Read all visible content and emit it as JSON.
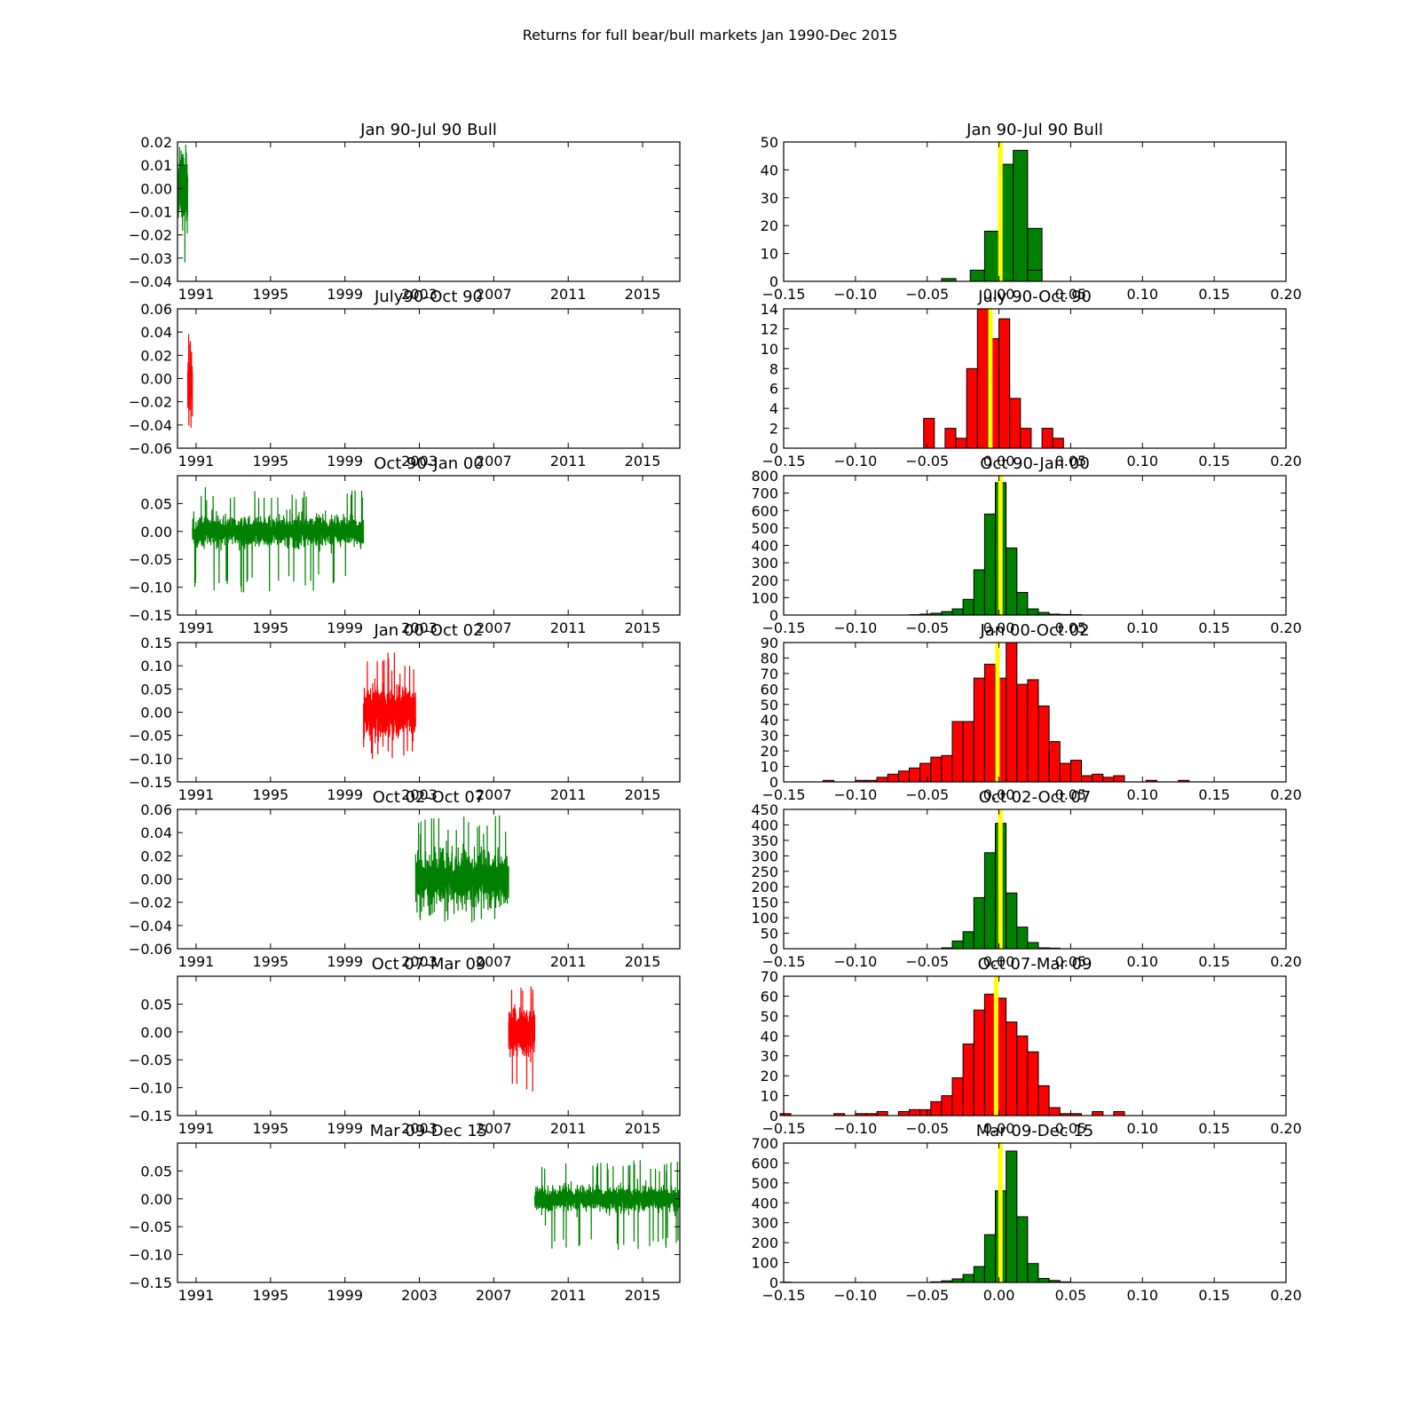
{
  "figure_title": "Returns for full bear/bull markets Jan 1990-Dec 2015",
  "colors": {
    "bull": "#008000",
    "bear": "#ff0000",
    "mean_line": "#ffff00"
  },
  "chart_data": [
    {
      "type": "line",
      "title": "Jan 90-Jul 90 Bull",
      "market": "bull",
      "x_ticks": [
        "1991",
        "1995",
        "1999",
        "2003",
        "2007",
        "2011",
        "2015"
      ],
      "x_range": [
        1990.0,
        2017.0
      ],
      "data_span": [
        1990.0,
        1990.55
      ],
      "ylim": [
        -0.04,
        0.02
      ],
      "y_ticks": [
        "0.02",
        "0.01",
        "0.00",
        "−0.01",
        "−0.02",
        "−0.03",
        "−0.04"
      ],
      "y_tick_values": [
        0.02,
        0.01,
        0.0,
        -0.01,
        -0.02,
        -0.03,
        -0.04
      ],
      "approx_min": -0.032,
      "approx_max": 0.02,
      "typical_amplitude": 0.008
    },
    {
      "type": "bar",
      "title": "Jan 90-Jul 90 Bull",
      "market": "bull",
      "bin_width": 0.01,
      "xlim": [
        -0.15,
        0.2
      ],
      "x_ticks": [
        "−0.15",
        "−0.10",
        "−0.05",
        "0.00",
        "0.05",
        "0.10",
        "0.15",
        "0.20"
      ],
      "ylim": [
        0,
        50
      ],
      "y_ticks": [
        "0",
        "10",
        "20",
        "30",
        "40",
        "50"
      ],
      "bin_starts": [
        -0.04,
        -0.03,
        -0.02,
        -0.01,
        0.0,
        0.01,
        0.02
      ],
      "counts": [
        1,
        0,
        4,
        18,
        42,
        47,
        19
      ],
      "extra_bins": {
        "bin_starts": [
          0.02
        ],
        "counts": [
          4
        ]
      },
      "mean": 0.001
    },
    {
      "type": "line",
      "title": "July90-Oct 90",
      "market": "bear",
      "x_ticks": [
        "1991",
        "1995",
        "1999",
        "2003",
        "2007",
        "2011",
        "2015"
      ],
      "x_range": [
        1990.0,
        2017.0
      ],
      "data_span": [
        1990.55,
        1990.8
      ],
      "ylim": [
        -0.06,
        0.06
      ],
      "y_ticks": [
        "0.06",
        "0.04",
        "0.02",
        "0.00",
        "−0.02",
        "−0.04",
        "−0.06"
      ],
      "y_tick_values": [
        0.06,
        0.04,
        0.02,
        0.0,
        -0.02,
        -0.04,
        -0.06
      ],
      "approx_min": -0.05,
      "approx_max": 0.042,
      "typical_amplitude": 0.015
    },
    {
      "type": "bar",
      "title": "July 90-Oct 90",
      "market": "bear",
      "bin_width": 0.0075,
      "xlim": [
        -0.15,
        0.2
      ],
      "x_ticks": [
        "−0.15",
        "−0.10",
        "−0.05",
        "0.00",
        "0.05",
        "0.10",
        "0.15",
        "0.20"
      ],
      "ylim": [
        0,
        14
      ],
      "y_ticks": [
        "0",
        "2",
        "4",
        "6",
        "8",
        "10",
        "12",
        "14"
      ],
      "bin_starts": [
        -0.0525,
        -0.045,
        -0.0375,
        -0.03,
        -0.0225,
        -0.015,
        -0.0075,
        0.0,
        0.0075,
        0.015,
        0.0225,
        0.03,
        0.0375
      ],
      "counts": [
        3,
        0,
        2,
        1,
        8,
        14,
        11,
        13,
        5,
        2,
        0,
        2,
        1
      ],
      "mean": -0.006
    },
    {
      "type": "line",
      "title": "Oct 90-Jan 00",
      "market": "bull",
      "x_ticks": [
        "1991",
        "1995",
        "1999",
        "2003",
        "2007",
        "2011",
        "2015"
      ],
      "x_range": [
        1990.0,
        2017.0
      ],
      "data_span": [
        1990.8,
        2000.0
      ],
      "ylim": [
        -0.15,
        0.1
      ],
      "y_ticks": [
        "0.05",
        "0.00",
        "−0.05",
        "−0.10",
        "−0.15"
      ],
      "y_tick_values": [
        0.05,
        0.0,
        -0.05,
        -0.1,
        -0.15
      ],
      "approx_min": -0.11,
      "approx_max": 0.08,
      "typical_amplitude": 0.012
    },
    {
      "type": "bar",
      "title": "Oct 90-Jan 00",
      "market": "bull",
      "bin_width": 0.0075,
      "xlim": [
        -0.15,
        0.2
      ],
      "x_ticks": [
        "−0.15",
        "−0.10",
        "−0.05",
        "0.00",
        "0.05",
        "0.10",
        "0.15",
        "0.20"
      ],
      "ylim": [
        0,
        800
      ],
      "y_ticks": [
        "0",
        "100",
        "200",
        "300",
        "400",
        "500",
        "600",
        "700",
        "800"
      ],
      "bin_starts": [
        -0.0625,
        -0.055,
        -0.0475,
        -0.04,
        -0.0325,
        -0.025,
        -0.0175,
        -0.01,
        -0.0025,
        0.005,
        0.0125,
        0.02,
        0.0275,
        0.035,
        0.0425,
        0.05
      ],
      "counts": [
        2,
        5,
        10,
        20,
        35,
        90,
        260,
        580,
        760,
        385,
        130,
        35,
        15,
        5,
        3,
        2
      ],
      "mean": 0.001
    },
    {
      "type": "line",
      "title": "Jan 00-Oct 02",
      "market": "bear",
      "x_ticks": [
        "1991",
        "1995",
        "1999",
        "2003",
        "2007",
        "2011",
        "2015"
      ],
      "x_range": [
        1990.0,
        2017.0
      ],
      "data_span": [
        2000.0,
        2002.8
      ],
      "ylim": [
        -0.15,
        0.15
      ],
      "y_ticks": [
        "0.15",
        "0.10",
        "0.05",
        "0.00",
        "−0.05",
        "−0.10",
        "−0.15"
      ],
      "y_tick_values": [
        0.15,
        0.1,
        0.05,
        0.0,
        -0.05,
        -0.1,
        -0.15
      ],
      "approx_min": -0.11,
      "approx_max": 0.13,
      "typical_amplitude": 0.025
    },
    {
      "type": "bar",
      "title": "Jan 00-Oct 02",
      "market": "bear",
      "bin_width": 0.0075,
      "xlim": [
        -0.15,
        0.2
      ],
      "x_ticks": [
        "−0.15",
        "−0.10",
        "−0.05",
        "0.00",
        "0.05",
        "0.10",
        "0.15",
        "0.20"
      ],
      "ylim": [
        0,
        90
      ],
      "y_ticks": [
        "0",
        "10",
        "20",
        "30",
        "40",
        "50",
        "60",
        "70",
        "80",
        "90"
      ],
      "bin_starts": [
        -0.1225,
        -0.115,
        -0.1075,
        -0.1,
        -0.0925,
        -0.085,
        -0.0775,
        -0.07,
        -0.0625,
        -0.055,
        -0.0475,
        -0.04,
        -0.0325,
        -0.025,
        -0.0175,
        -0.01,
        -0.0025,
        0.005,
        0.0125,
        0.02,
        0.0275,
        0.035,
        0.0425,
        0.05,
        0.0575,
        0.065,
        0.0725,
        0.08,
        0.0875,
        0.095,
        0.1025,
        0.11,
        0.1175,
        0.125,
        0.1325
      ],
      "counts": [
        1,
        0,
        0,
        1,
        1,
        3,
        5,
        7,
        9,
        12,
        16,
        17,
        39,
        39,
        67,
        76,
        67,
        90,
        63,
        66,
        49,
        26,
        12,
        14,
        4,
        5,
        3,
        4,
        0,
        0,
        1,
        0,
        0,
        1,
        0
      ],
      "mean": -0.001
    },
    {
      "type": "line",
      "title": "Oct 02-Oct 07",
      "market": "bull",
      "x_ticks": [
        "1991",
        "1995",
        "1999",
        "2003",
        "2007",
        "2011",
        "2015"
      ],
      "x_range": [
        1990.0,
        2017.0
      ],
      "data_span": [
        2002.8,
        2007.8
      ],
      "ylim": [
        -0.06,
        0.06
      ],
      "y_ticks": [
        "0.06",
        "0.04",
        "0.02",
        "0.00",
        "−0.02",
        "−0.04",
        "−0.06"
      ],
      "y_tick_values": [
        0.06,
        0.04,
        0.02,
        0.0,
        -0.02,
        -0.04,
        -0.06
      ],
      "approx_min": -0.04,
      "approx_max": 0.055,
      "typical_amplitude": 0.01
    },
    {
      "type": "bar",
      "title": "Oct 02-Oct 07",
      "market": "bull",
      "bin_width": 0.0075,
      "xlim": [
        -0.15,
        0.2
      ],
      "x_ticks": [
        "−0.15",
        "−0.10",
        "−0.05",
        "0.00",
        "0.05",
        "0.10",
        "0.15",
        "0.20"
      ],
      "ylim": [
        0,
        450
      ],
      "y_ticks": [
        "0",
        "50",
        "100",
        "150",
        "200",
        "250",
        "300",
        "350",
        "400",
        "450"
      ],
      "bin_starts": [
        -0.04,
        -0.0325,
        -0.025,
        -0.0175,
        -0.01,
        -0.0025,
        0.005,
        0.0125,
        0.02,
        0.0275,
        0.035
      ],
      "counts": [
        3,
        25,
        55,
        165,
        310,
        405,
        180,
        70,
        20,
        3,
        2
      ],
      "mean": 0.001
    },
    {
      "type": "line",
      "title": "Oct 07-Mar 09",
      "market": "bear",
      "x_ticks": [
        "1991",
        "1995",
        "1999",
        "2003",
        "2007",
        "2011",
        "2015"
      ],
      "x_range": [
        1990.0,
        2017.0
      ],
      "data_span": [
        2007.8,
        2009.2
      ],
      "ylim": [
        -0.15,
        0.1
      ],
      "y_ticks": [
        "0.05",
        "0.00",
        "−0.05",
        "−0.10",
        "−0.15"
      ],
      "y_tick_values": [
        0.05,
        0.0,
        -0.05,
        -0.1,
        -0.15
      ],
      "approx_min": -0.11,
      "approx_max": 0.085,
      "typical_amplitude": 0.02
    },
    {
      "type": "bar",
      "title": "Oct 07-Mar 09",
      "market": "bear",
      "bin_width": 0.0075,
      "xlim": [
        -0.15,
        0.2
      ],
      "x_ticks": [
        "−0.15",
        "−0.10",
        "−0.05",
        "0.00",
        "0.05",
        "0.10",
        "0.15",
        "0.20"
      ],
      "ylim": [
        0,
        70
      ],
      "y_ticks": [
        "0",
        "10",
        "20",
        "30",
        "40",
        "50",
        "60",
        "70"
      ],
      "bin_starts": [
        -0.1525,
        -0.145,
        -0.1375,
        -0.13,
        -0.1225,
        -0.115,
        -0.1075,
        -0.1,
        -0.0925,
        -0.085,
        -0.0775,
        -0.07,
        -0.0625,
        -0.055,
        -0.0475,
        -0.04,
        -0.0325,
        -0.025,
        -0.0175,
        -0.01,
        -0.0025,
        0.005,
        0.0125,
        0.02,
        0.0275,
        0.035,
        0.0425,
        0.05,
        0.0575,
        0.065,
        0.0725,
        0.08,
        0.0875
      ],
      "counts": [
        1,
        0,
        0,
        0,
        0,
        1,
        0,
        1,
        1,
        2,
        0,
        2,
        3,
        3,
        7,
        10,
        19,
        36,
        53,
        61,
        59,
        47,
        40,
        32,
        15,
        4,
        1,
        1,
        0,
        2,
        0,
        2,
        0
      ],
      "mean": -0.002
    },
    {
      "type": "line",
      "title": "Mar 09-Dec 15",
      "market": "bull",
      "x_ticks": [
        "1991",
        "1995",
        "1999",
        "2003",
        "2007",
        "2011",
        "2015"
      ],
      "x_range": [
        1990.0,
        2017.0
      ],
      "data_span": [
        2009.2,
        2017.0
      ],
      "ylim": [
        -0.15,
        0.1
      ],
      "y_ticks": [
        "0.05",
        "0.00",
        "−0.05",
        "−0.10",
        "−0.15"
      ],
      "y_tick_values": [
        0.05,
        0.0,
        -0.05,
        -0.1,
        -0.15
      ],
      "approx_min": -0.1,
      "approx_max": 0.07,
      "typical_amplitude": 0.01
    },
    {
      "type": "bar",
      "title": "Mar 09-Dec 15",
      "market": "bull",
      "bin_width": 0.0075,
      "xlim": [
        -0.15,
        0.2
      ],
      "x_ticks": [
        "−0.15",
        "−0.10",
        "−0.05",
        "0.00",
        "0.05",
        "0.10",
        "0.15",
        "0.20"
      ],
      "ylim": [
        0,
        700
      ],
      "y_ticks": [
        "0",
        "100",
        "200",
        "300",
        "400",
        "500",
        "600",
        "700"
      ],
      "bin_starts": [
        -0.1525,
        -0.0475,
        -0.04,
        -0.0325,
        -0.025,
        -0.0175,
        -0.01,
        -0.0025,
        0.005,
        0.0125,
        0.02,
        0.0275,
        0.035,
        0.0425
      ],
      "counts": [
        2,
        3,
        8,
        18,
        40,
        80,
        240,
        460,
        660,
        330,
        95,
        20,
        10,
        3
      ],
      "mean": 0.001
    }
  ]
}
